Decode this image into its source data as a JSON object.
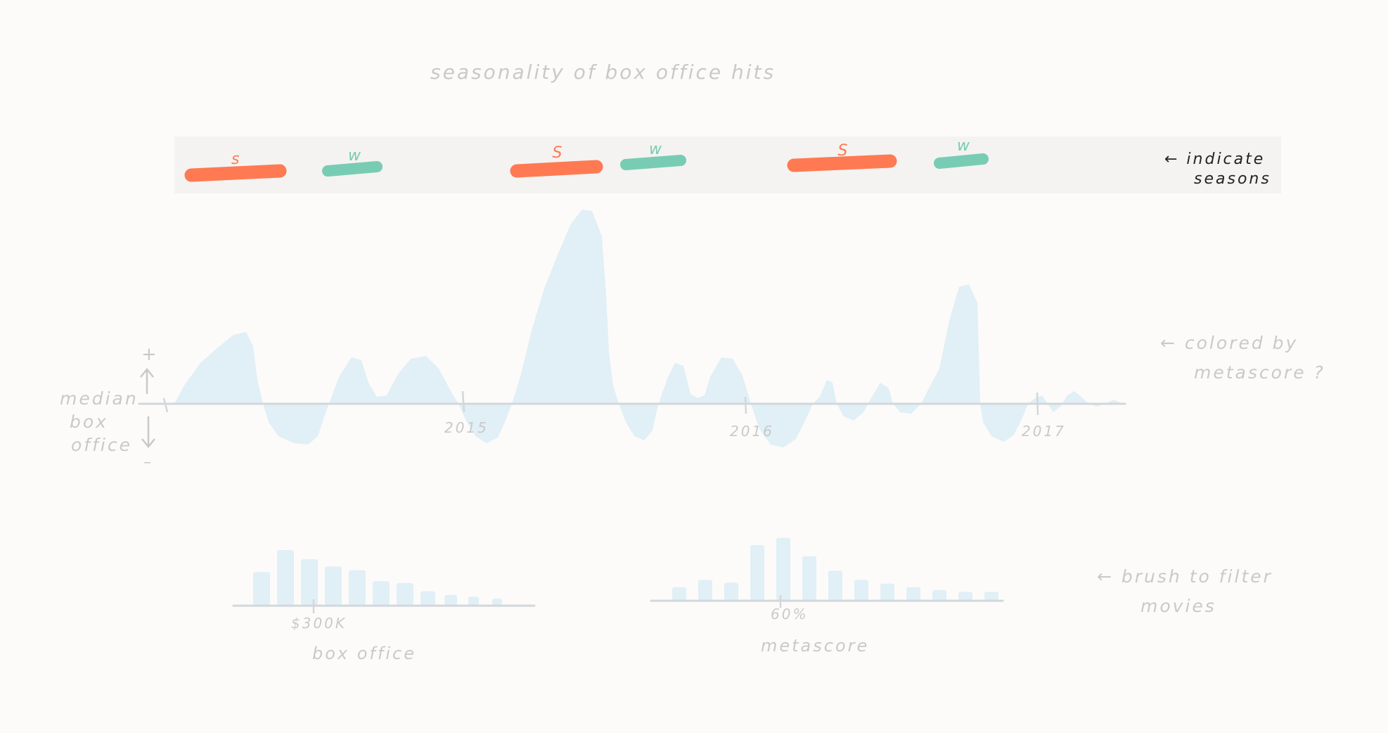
{
  "title": "seasonality of box office hits",
  "colors": {
    "summer": "#ff7a52",
    "winter": "#78ccb4",
    "area": "#e1eff6",
    "axis": "#d2d7da",
    "note": "#c9c9c9",
    "note_dark": "#222222",
    "band": "#f4f3f1"
  },
  "season_band": {
    "seasons": [
      {
        "label": "s",
        "type": "summer"
      },
      {
        "label": "w",
        "type": "winter"
      },
      {
        "label": "S",
        "type": "summer"
      },
      {
        "label": "w",
        "type": "winter"
      },
      {
        "label": "S",
        "type": "summer"
      },
      {
        "label": "w",
        "type": "winter"
      }
    ],
    "note_line1": "← indicate",
    "note_line2": "seasons"
  },
  "main_chart": {
    "y_label": [
      "median",
      "box",
      "office"
    ],
    "y_plus": "+",
    "y_minus": "–",
    "year_ticks": [
      "2015",
      "2016",
      "2017"
    ],
    "note_line1": "← colored by",
    "note_line2": "metascore ?"
  },
  "histograms": [
    {
      "name": "box-office",
      "tick_label": "$300K",
      "axis_label": "box office",
      "values": [
        36,
        60,
        50,
        42,
        38,
        26,
        24,
        15,
        11,
        9,
        7
      ]
    },
    {
      "name": "metascore",
      "tick_label": "60%",
      "axis_label": "metascore",
      "values": [
        14,
        22,
        19,
        60,
        68,
        48,
        32,
        22,
        18,
        14,
        11,
        9,
        9
      ]
    }
  ],
  "brush_note_line1": "← brush to filter",
  "brush_note_line2": "movies"
}
